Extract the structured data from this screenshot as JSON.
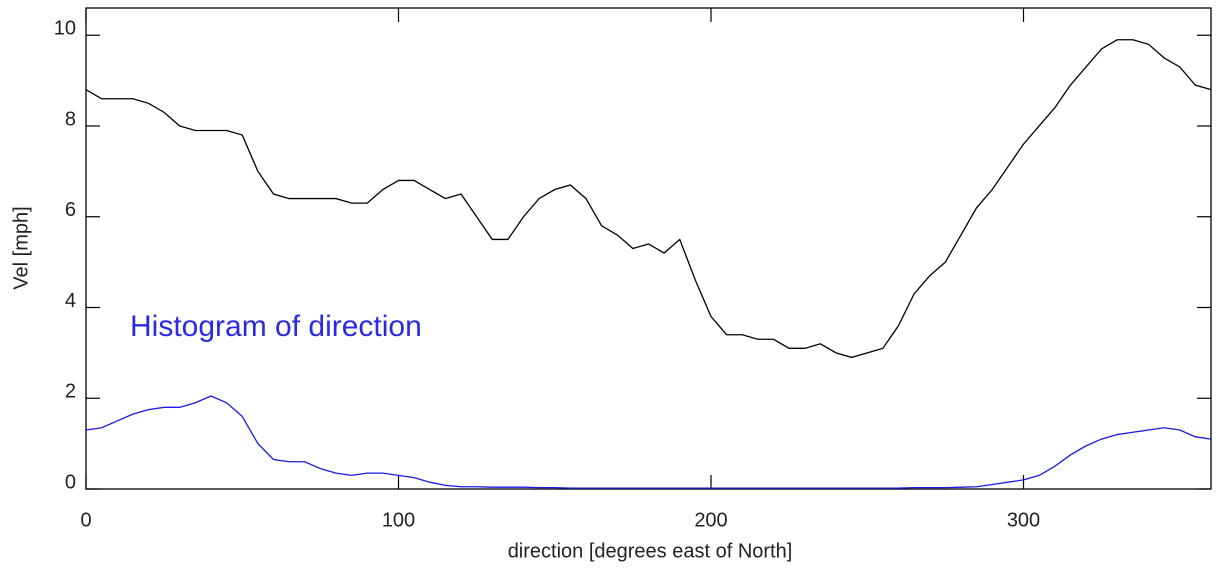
{
  "chart_data": {
    "type": "line",
    "x_label": "direction [degrees east of North]",
    "y_label": "Vel [mph]",
    "annotation": "Histogram of direction",
    "x": [
      0,
      5,
      10,
      15,
      20,
      25,
      30,
      35,
      40,
      45,
      50,
      55,
      60,
      65,
      70,
      75,
      80,
      85,
      90,
      95,
      100,
      105,
      110,
      115,
      120,
      125,
      130,
      135,
      140,
      145,
      150,
      155,
      160,
      165,
      170,
      175,
      180,
      185,
      190,
      195,
      200,
      205,
      210,
      215,
      220,
      225,
      230,
      235,
      240,
      245,
      250,
      255,
      260,
      265,
      270,
      275,
      280,
      285,
      290,
      295,
      300,
      305,
      310,
      315,
      320,
      325,
      330,
      335,
      340,
      345,
      350,
      355,
      360
    ],
    "series": [
      {
        "color": "#000000",
        "values": [
          8.8,
          8.6,
          8.6,
          8.6,
          8.5,
          8.3,
          8.0,
          7.9,
          7.9,
          7.9,
          7.8,
          7.0,
          6.5,
          6.4,
          6.4,
          6.4,
          6.4,
          6.3,
          6.3,
          6.6,
          6.8,
          6.8,
          6.6,
          6.4,
          6.5,
          6.0,
          5.5,
          5.5,
          6.0,
          6.4,
          6.6,
          6.7,
          6.4,
          5.8,
          5.6,
          5.3,
          5.4,
          5.2,
          5.5,
          4.6,
          3.8,
          3.4,
          3.4,
          3.3,
          3.3,
          3.1,
          3.1,
          3.2,
          3.0,
          2.9,
          3.0,
          3.1,
          3.6,
          4.3,
          4.7,
          5.0,
          5.6,
          6.2,
          6.6,
          7.1,
          7.6,
          8.0,
          8.4,
          8.9,
          9.3,
          9.7,
          9.9,
          9.9,
          9.8,
          9.5,
          9.3,
          8.9,
          8.8
        ]
      },
      {
        "color": "#1a1ae0",
        "values": [
          1.3,
          1.35,
          1.5,
          1.65,
          1.75,
          1.8,
          1.8,
          1.9,
          2.05,
          1.9,
          1.6,
          1.0,
          0.65,
          0.6,
          0.6,
          0.45,
          0.35,
          0.3,
          0.35,
          0.35,
          0.3,
          0.25,
          0.15,
          0.08,
          0.05,
          0.05,
          0.04,
          0.04,
          0.04,
          0.03,
          0.03,
          0.02,
          0.02,
          0.02,
          0.02,
          0.02,
          0.02,
          0.02,
          0.02,
          0.02,
          0.02,
          0.02,
          0.02,
          0.02,
          0.02,
          0.02,
          0.02,
          0.02,
          0.02,
          0.02,
          0.02,
          0.02,
          0.02,
          0.03,
          0.03,
          0.03,
          0.04,
          0.05,
          0.1,
          0.15,
          0.2,
          0.3,
          0.5,
          0.75,
          0.95,
          1.1,
          1.2,
          1.25,
          1.3,
          1.35,
          1.3,
          1.15,
          1.1
        ]
      }
    ],
    "xlim": [
      0,
      360
    ],
    "xticks": [
      0,
      100,
      200,
      300
    ],
    "ylim": [
      0,
      10.6
    ],
    "yticks": [
      0,
      2,
      4,
      6,
      8,
      10
    ]
  }
}
